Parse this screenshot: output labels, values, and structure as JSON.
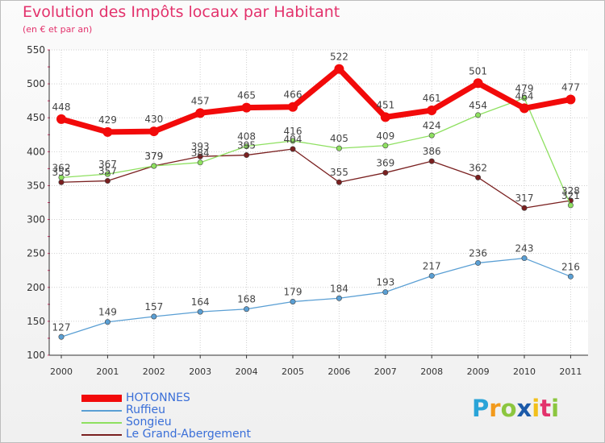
{
  "chart_data": {
    "type": "line",
    "title": "Evolution des Impôts locaux par Habitant",
    "subtitle": "(en € et par an)",
    "xlabel": "",
    "ylabel": "",
    "categories": [
      "2000",
      "2001",
      "2002",
      "2003",
      "2004",
      "2005",
      "2006",
      "2007",
      "2008",
      "2009",
      "2010",
      "2011"
    ],
    "y_ticks": [
      "100",
      "150",
      "200",
      "250",
      "300",
      "350",
      "400",
      "450",
      "500",
      "550"
    ],
    "ylim": [
      100,
      550
    ],
    "grid": true,
    "legend_position": "bottom-left",
    "series": [
      {
        "name": "HOTONNES",
        "color": "#f20a0a",
        "emphasis": "thick",
        "values": [
          448,
          429,
          430,
          457,
          465,
          466,
          522,
          451,
          461,
          501,
          464,
          477
        ],
        "labels": [
          "448",
          "429",
          "430",
          "457",
          "465",
          "466",
          "522",
          "451",
          "461",
          "501",
          "464",
          "477"
        ]
      },
      {
        "name": "Ruffieu",
        "color": "#5a9fd4",
        "emphasis": "thin",
        "values": [
          127,
          149,
          157,
          164,
          168,
          179,
          184,
          193,
          217,
          236,
          243,
          216
        ],
        "labels": [
          "127",
          "149",
          "157",
          "164",
          "168",
          "179",
          "184",
          "193",
          "217",
          "236",
          "243",
          "216"
        ]
      },
      {
        "name": "Songieu",
        "color": "#8ee060",
        "emphasis": "thin",
        "values": [
          362,
          367,
          379,
          384,
          408,
          416,
          405,
          409,
          424,
          454,
          479,
          321
        ],
        "labels": [
          "362",
          "367",
          "379",
          "384",
          "408",
          "416",
          "405",
          "409",
          "424",
          "454",
          "479",
          "321"
        ]
      },
      {
        "name": "Le Grand-Abergement",
        "color": "#7a2020",
        "emphasis": "thin",
        "values": [
          355,
          357,
          379,
          393,
          395,
          404,
          355,
          369,
          386,
          362,
          317,
          328
        ],
        "labels": [
          "355",
          "357",
          "379",
          "393",
          "395",
          "404",
          "355",
          "369",
          "386",
          "362",
          "317",
          "328"
        ]
      }
    ]
  },
  "brand": {
    "letters": [
      "P",
      "r",
      "o",
      "x",
      "i",
      "t",
      "i"
    ],
    "colors": [
      "#2aa4d8",
      "#f29a1c",
      "#8cc63f",
      "#1c5aa8",
      "#f2c01c",
      "#e3326c",
      "#8cc63f"
    ]
  }
}
